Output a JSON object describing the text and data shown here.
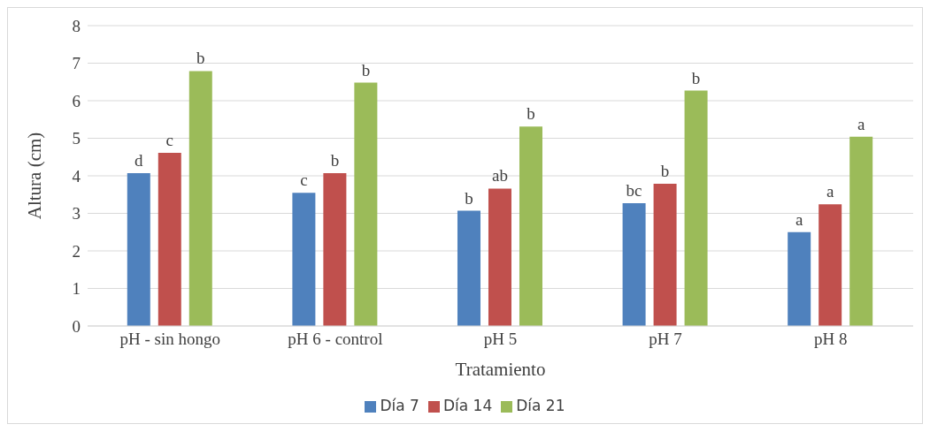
{
  "chart_data": {
    "type": "bar",
    "xlabel": "Tratamiento",
    "ylabel": "Altura (cm)",
    "categories": [
      "pH - sin hongo",
      "pH 6 - control",
      "pH 5",
      "pH 7",
      "pH 8"
    ],
    "series": [
      {
        "name": "Día 7",
        "color": "#4f81bd",
        "values": [
          4.07,
          3.55,
          3.07,
          3.27,
          2.5
        ],
        "value_labels": [
          "d",
          "c",
          "b",
          "bc",
          "a"
        ]
      },
      {
        "name": "Día 14",
        "color": "#c0504d",
        "values": [
          4.61,
          4.07,
          3.66,
          3.79,
          3.24
        ],
        "value_labels": [
          "c",
          "b",
          "ab",
          "b",
          "a"
        ]
      },
      {
        "name": "Día 21",
        "color": "#9bbb59",
        "values": [
          6.79,
          6.48,
          5.31,
          6.27,
          5.04
        ],
        "value_labels": [
          "b",
          "b",
          "b",
          "b",
          "a"
        ]
      }
    ],
    "ylim": [
      0,
      8
    ],
    "yticks": [
      0,
      1,
      2,
      3,
      4,
      5,
      6,
      7,
      8
    ],
    "grid": "y",
    "legend": "bottom"
  }
}
